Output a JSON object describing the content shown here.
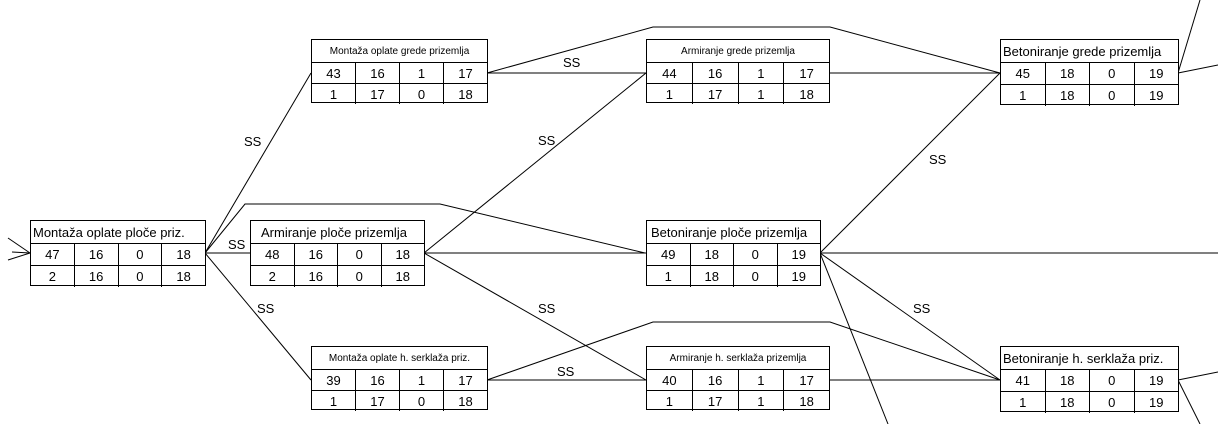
{
  "link_label": "SS",
  "nodes": {
    "n47": {
      "title": "Montaža oplate ploče priz.",
      "top": [
        "47",
        "16",
        "0",
        "18"
      ],
      "bottom": [
        "2",
        "16",
        "0",
        "18"
      ]
    },
    "n43": {
      "title": "Montaža oplate grede prizemlja",
      "top": [
        "43",
        "16",
        "1",
        "17"
      ],
      "bottom": [
        "1",
        "17",
        "0",
        "18"
      ]
    },
    "n48": {
      "title": "Armiranje ploče prizemlja",
      "top": [
        "48",
        "16",
        "0",
        "18"
      ],
      "bottom": [
        "2",
        "16",
        "0",
        "18"
      ]
    },
    "n39": {
      "title": "Montaža oplate h. serklaža priz.",
      "top": [
        "39",
        "16",
        "1",
        "17"
      ],
      "bottom": [
        "1",
        "17",
        "0",
        "18"
      ]
    },
    "n44": {
      "title": "Armiranje grede prizemlja",
      "top": [
        "44",
        "16",
        "1",
        "17"
      ],
      "bottom": [
        "1",
        "17",
        "1",
        "18"
      ]
    },
    "n49": {
      "title": "Betoniranje ploče prizemlja",
      "top": [
        "49",
        "18",
        "0",
        "19"
      ],
      "bottom": [
        "1",
        "18",
        "0",
        "19"
      ]
    },
    "n40": {
      "title": "Armiranje h. serklaža prizemlja",
      "top": [
        "40",
        "16",
        "1",
        "17"
      ],
      "bottom": [
        "1",
        "17",
        "1",
        "18"
      ]
    },
    "n45": {
      "title": "Betoniranje grede prizemlja",
      "top": [
        "45",
        "18",
        "0",
        "19"
      ],
      "bottom": [
        "1",
        "18",
        "0",
        "19"
      ]
    },
    "n41": {
      "title": "Betoniranje h. serklaža priz.",
      "top": [
        "41",
        "18",
        "0",
        "19"
      ],
      "bottom": [
        "1",
        "18",
        "0",
        "19"
      ]
    }
  }
}
